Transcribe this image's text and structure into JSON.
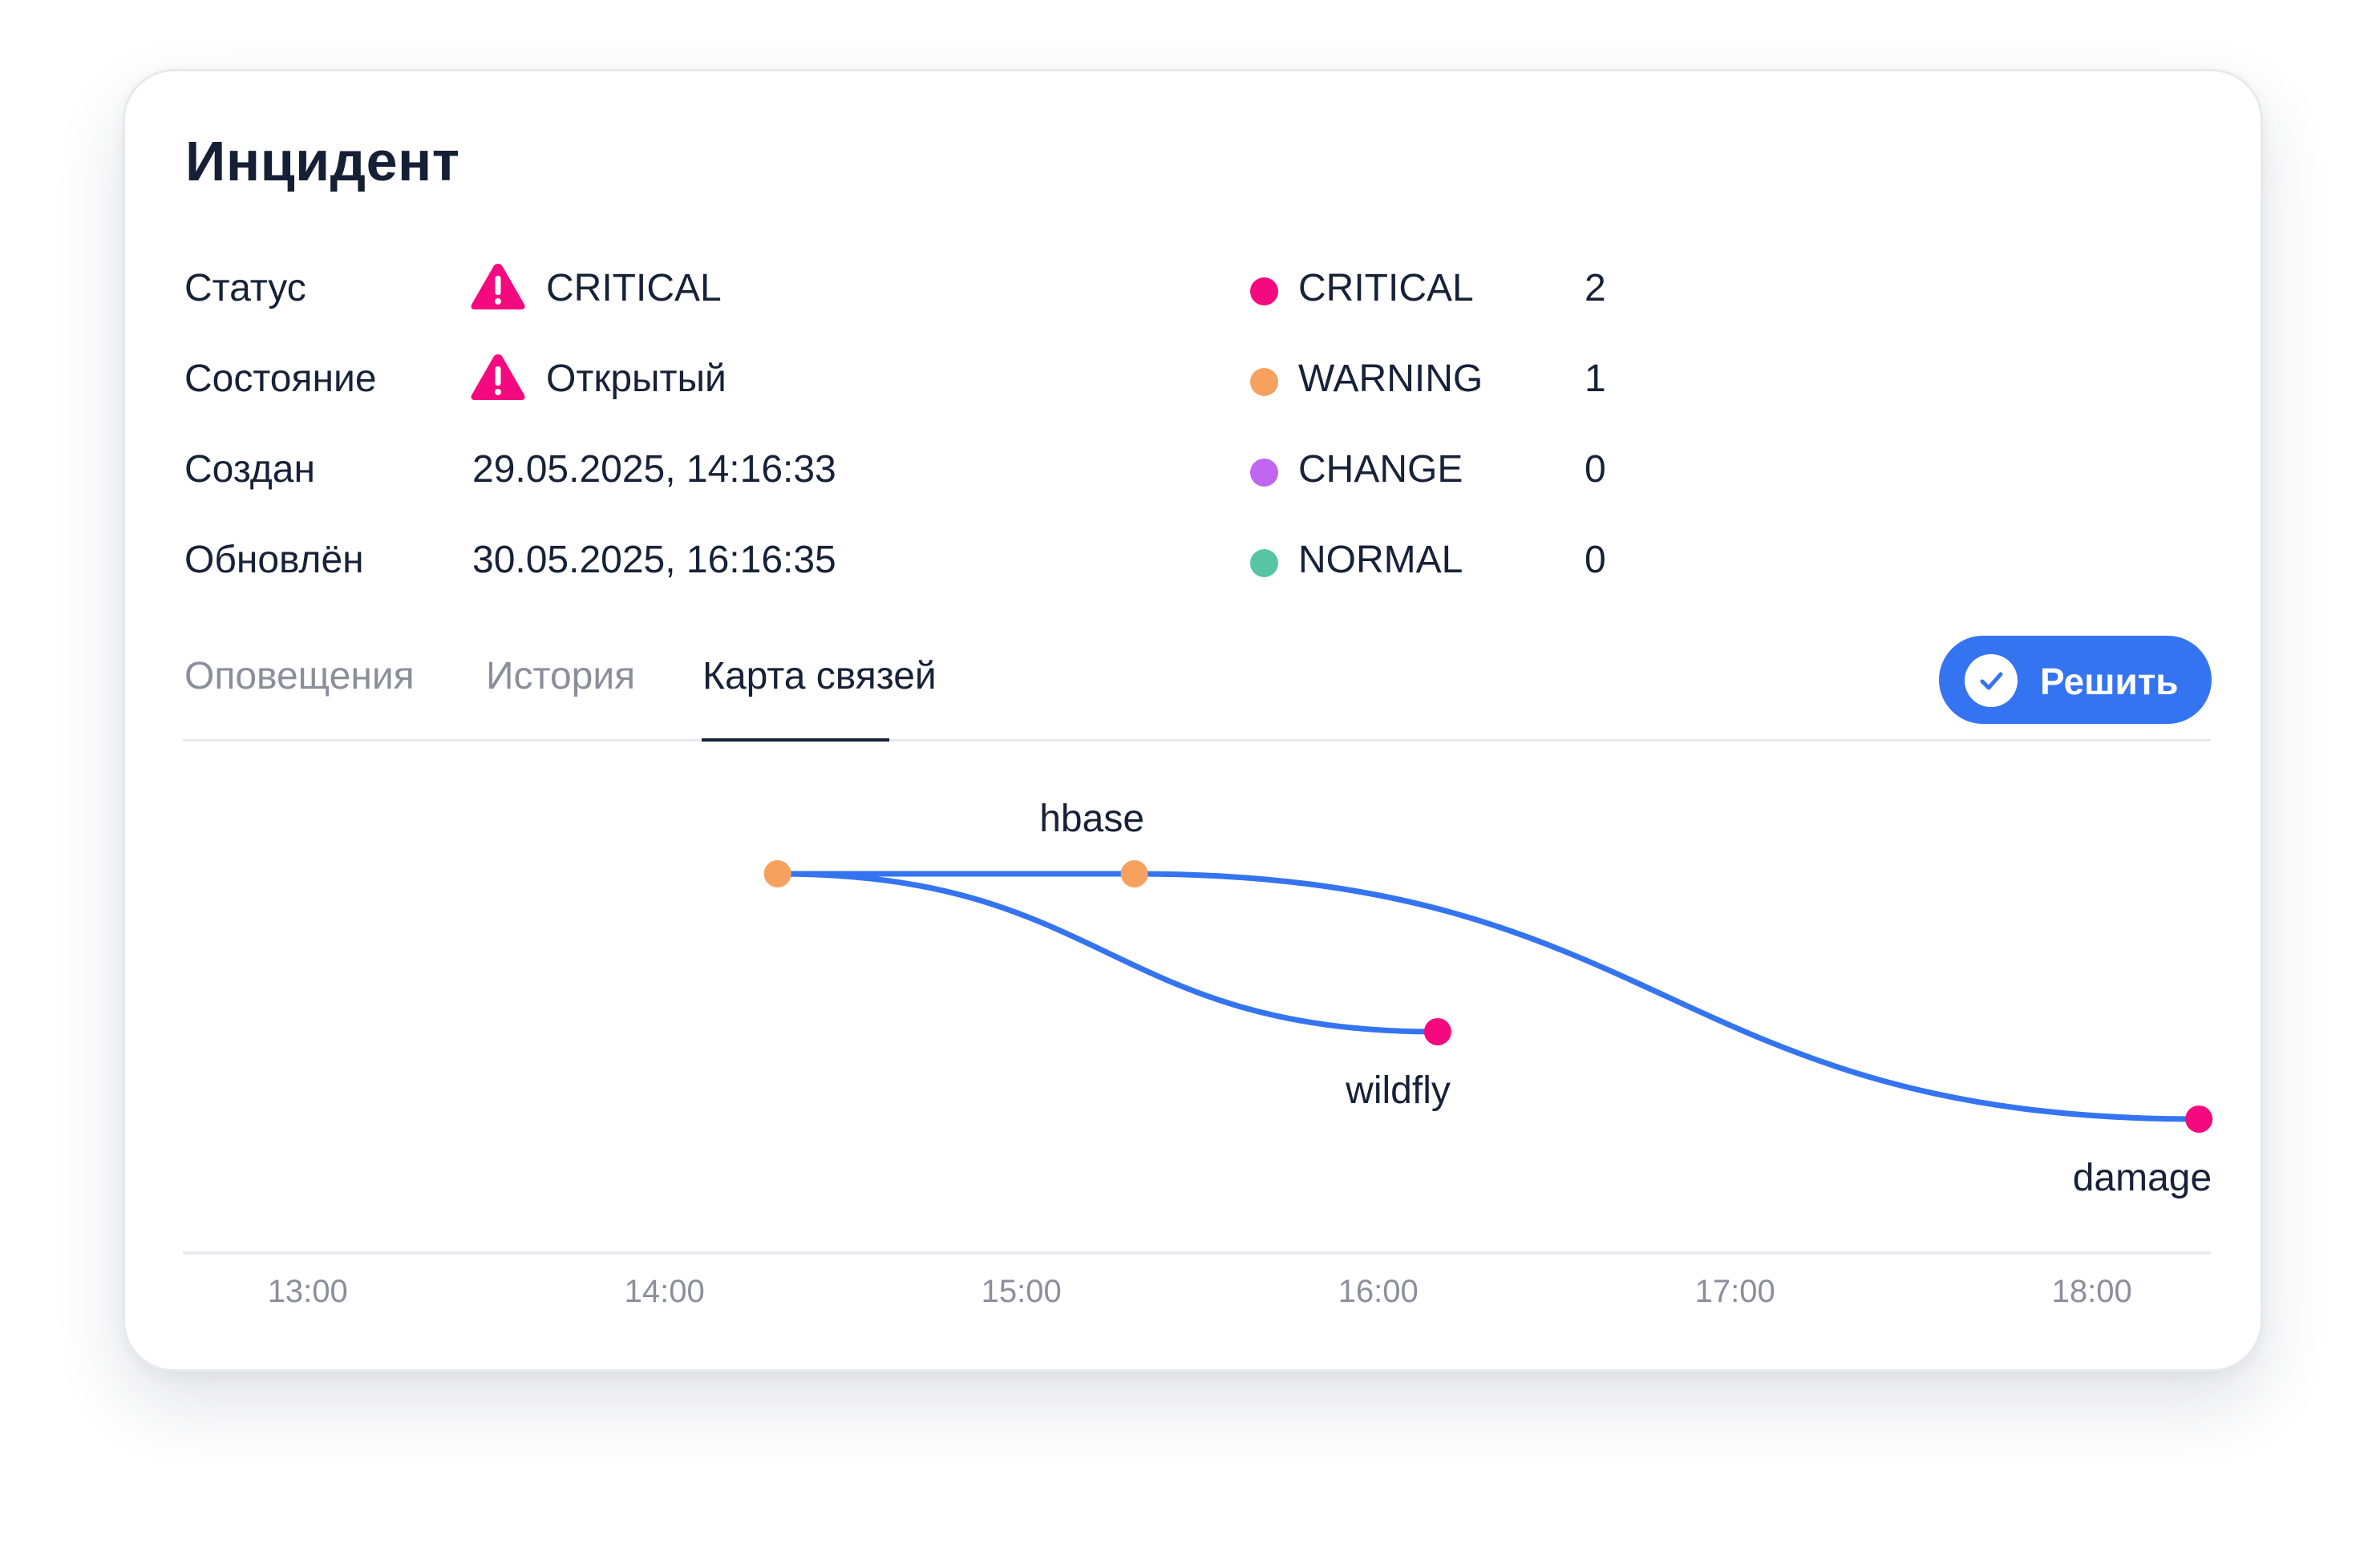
{
  "title": "Инцидент",
  "details": [
    {
      "label": "Статус",
      "value": "CRITICAL",
      "icon": "warning-triangle-icon"
    },
    {
      "label": "Состояние",
      "value": "Открытый",
      "icon": "warning-triangle-icon"
    },
    {
      "label": "Создан",
      "value": "29.05.2025, 14:16:33"
    },
    {
      "label": "Обновлён",
      "value": "30.05.2025, 16:16:35"
    }
  ],
  "legend": [
    {
      "label": "CRITICAL",
      "count": "2",
      "color": "#f5097f"
    },
    {
      "label": "WARNING",
      "count": "1",
      "color": "#f7a15e"
    },
    {
      "label": "CHANGE",
      "count": "0",
      "color": "#c066ee"
    },
    {
      "label": "NORMAL",
      "count": "0",
      "color": "#56c5a4"
    }
  ],
  "tabs": [
    {
      "label": "Оповещения",
      "active": false
    },
    {
      "label": "История",
      "active": false
    },
    {
      "label": "Карта связей",
      "active": true
    }
  ],
  "resolve_button": {
    "label": "Решить",
    "icon": "check-icon"
  },
  "colors": {
    "accent": "#3574f0",
    "critical": "#f5097f",
    "warning": "#f7a15e",
    "text": "#172238",
    "muted": "#8a8f9a"
  },
  "chart_data": {
    "type": "line",
    "x_axis_ticks": [
      "13:00",
      "14:00",
      "15:00",
      "16:00",
      "17:00",
      "18:00"
    ],
    "x_range": [
      "12:39",
      "18:20"
    ],
    "nodes": [
      {
        "id": "n1",
        "label": "",
        "time": "14:19",
        "severity": "WARNING",
        "color": "#f7a15e",
        "lane": 0
      },
      {
        "id": "hbase",
        "label": "hbase",
        "time": "15:19",
        "severity": "WARNING",
        "color": "#f7a15e",
        "lane": 0
      },
      {
        "id": "wildfly",
        "label": "wildfly",
        "time": "16:10",
        "severity": "CRITICAL",
        "color": "#f5097f",
        "lane": 1
      },
      {
        "id": "damage",
        "label": "damage",
        "time": "18:18",
        "severity": "CRITICAL",
        "color": "#f5097f",
        "lane": 2
      }
    ],
    "edges": [
      {
        "from": "n1",
        "to": "hbase"
      },
      {
        "from": "n1",
        "to": "wildfly"
      },
      {
        "from": "hbase",
        "to": "damage"
      }
    ]
  }
}
